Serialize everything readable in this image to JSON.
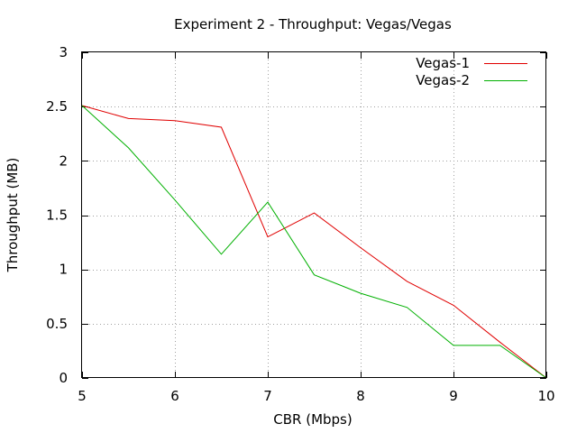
{
  "chart_data": {
    "type": "line",
    "title": "Experiment 2 - Throughput: Vegas/Vegas",
    "xlabel": "CBR (Mbps)",
    "ylabel": "Throughput (MB)",
    "xlim": [
      5,
      10
    ],
    "ylim": [
      0,
      3
    ],
    "xticks": [
      5,
      6,
      7,
      8,
      9,
      10
    ],
    "yticks": [
      0,
      0.5,
      1,
      1.5,
      2,
      2.5,
      3
    ],
    "xtick_labels": [
      "5",
      "6",
      "7",
      "8",
      "9",
      "10"
    ],
    "ytick_labels": [
      "0",
      "0.5",
      "1",
      "1.5",
      "2",
      "2.5",
      "3"
    ],
    "grid": true,
    "legend_position": "top-right",
    "series": [
      {
        "name": "Vegas-1",
        "color": "#e00000",
        "x": [
          5,
          5.5,
          6,
          6.5,
          7,
          7.5,
          8,
          8.5,
          9,
          9.5,
          10
        ],
        "y": [
          2.51,
          2.39,
          2.37,
          2.31,
          1.3,
          1.52,
          1.2,
          0.89,
          0.67,
          0.33,
          0.0
        ]
      },
      {
        "name": "Vegas-2",
        "color": "#00b000",
        "x": [
          5,
          5.5,
          6,
          6.5,
          7,
          7.5,
          8,
          8.5,
          9,
          9.5,
          10
        ],
        "y": [
          2.51,
          2.12,
          1.64,
          1.14,
          1.62,
          0.95,
          0.78,
          0.65,
          0.3,
          0.3,
          0.0
        ]
      }
    ]
  }
}
